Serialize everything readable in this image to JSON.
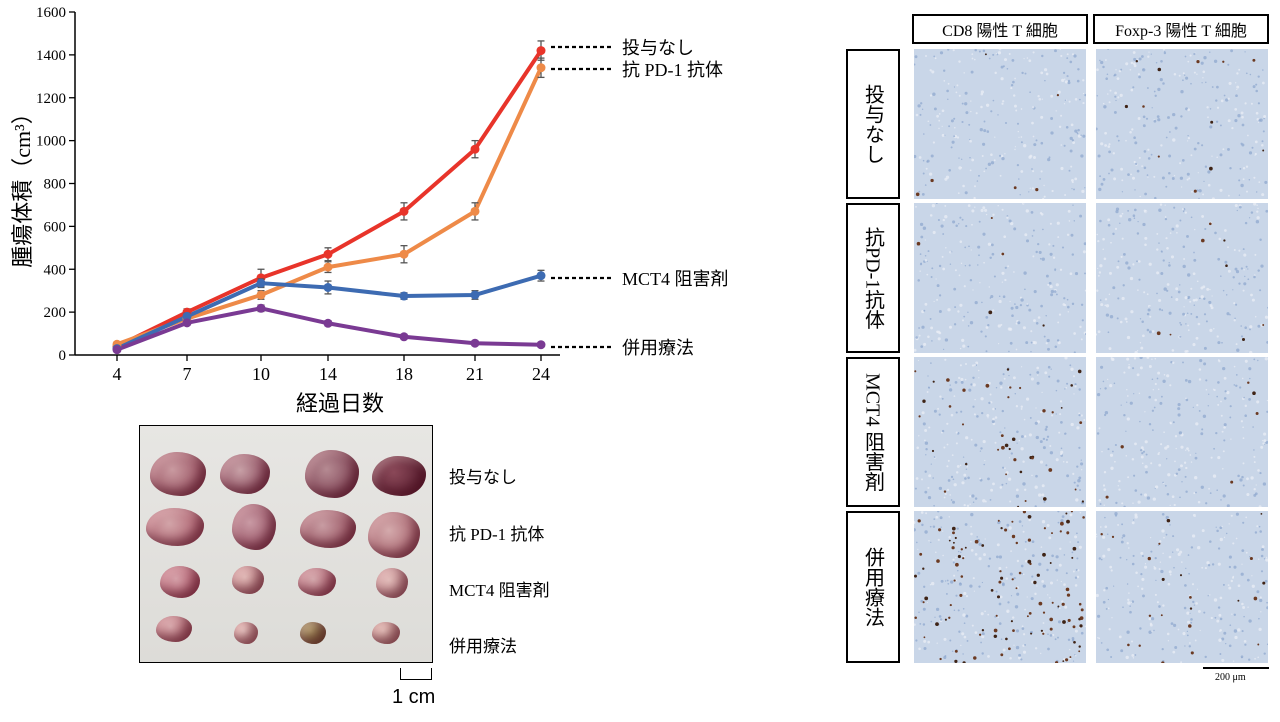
{
  "chart_data": {
    "type": "line",
    "ylabel": "腫瘍体積（cm³）",
    "xlabel": "経過日数",
    "x": [
      4,
      7,
      10,
      14,
      18,
      21,
      24
    ],
    "x_tick_labels": [
      "4",
      "7",
      "10",
      "14",
      "18",
      "21",
      "24"
    ],
    "ylim": [
      0,
      1600
    ],
    "y_ticks": [
      0,
      200,
      400,
      600,
      800,
      1000,
      1200,
      1400,
      1600
    ],
    "grid": false,
    "series": [
      {
        "name": "投与なし",
        "color": "#e8342a",
        "values": [
          40,
          200,
          360,
          470,
          670,
          960,
          1420
        ],
        "errors": [
          10,
          15,
          40,
          30,
          40,
          40,
          45
        ]
      },
      {
        "name": "抗 PD-1 抗体",
        "color": "#ee8a48",
        "values": [
          50,
          170,
          280,
          410,
          470,
          670,
          1340
        ],
        "errors": [
          8,
          15,
          20,
          25,
          40,
          40,
          45
        ]
      },
      {
        "name": "MCT4 阻害剤",
        "color": "#3d6bb2",
        "values": [
          30,
          180,
          335,
          315,
          275,
          280,
          370
        ],
        "errors": [
          8,
          15,
          20,
          30,
          15,
          20,
          25
        ]
      },
      {
        "name": "併用療法",
        "color": "#7a3a93",
        "values": [
          25,
          150,
          218,
          148,
          85,
          55,
          48
        ],
        "errors": [
          5,
          10,
          15,
          12,
          8,
          6,
          5
        ]
      }
    ]
  },
  "photo": {
    "row_labels": [
      "投与なし",
      "抗 PD-1 抗体",
      "MCT4 阻害剤",
      "併用療法"
    ],
    "scale_label": "1 cm"
  },
  "histology": {
    "column_headers": [
      "CD8 陽性 T 細胞",
      "Foxp-3 陽性 T 細胞"
    ],
    "row_headers": [
      "投与なし",
      "抗PD-1抗体",
      "MCT4 阻害剤",
      "併用療法"
    ],
    "scale_label": "200 μm"
  }
}
